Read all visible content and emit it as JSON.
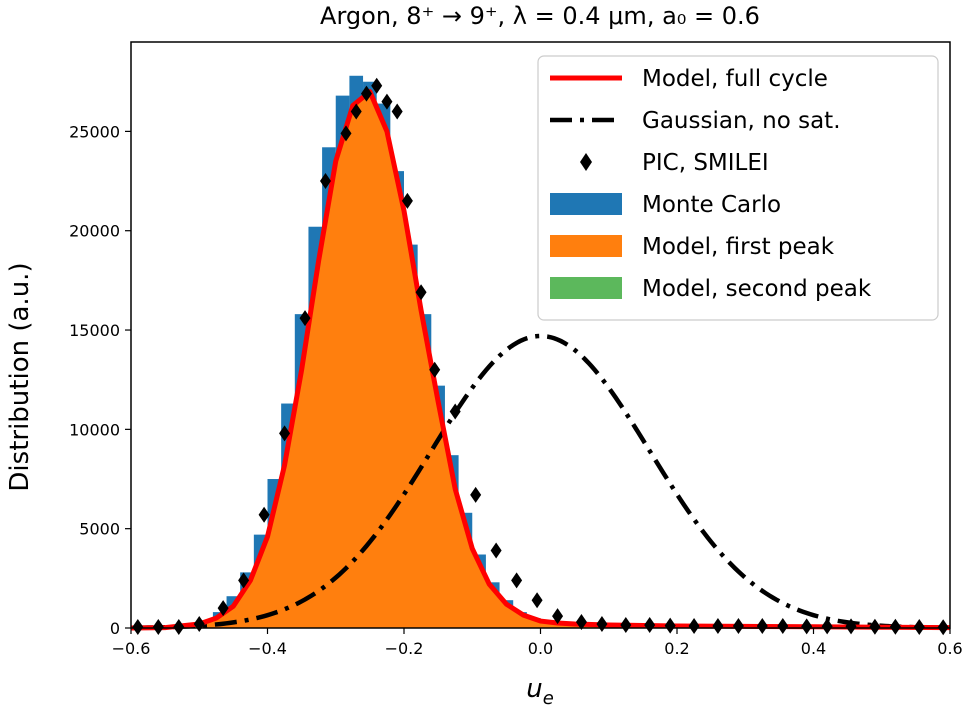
{
  "chart_data": {
    "type": "line",
    "title": "Argon, 8⁺ → 9⁺, λ = 0.4 μm, a₀ = 0.6",
    "xlabel": "u",
    "xlabel_sub": "e",
    "ylabel": "Distribution (a.u.)",
    "xlim": [
      -0.6,
      0.6
    ],
    "ylim": [
      0,
      29500
    ],
    "x_ticks": [
      -0.6,
      -0.4,
      -0.2,
      0.0,
      0.2,
      0.4,
      0.6
    ],
    "x_tick_labels": [
      "−0.6",
      "−0.4",
      "−0.2",
      "0.0",
      "0.2",
      "0.4",
      "0.6"
    ],
    "y_ticks": [
      0,
      5000,
      10000,
      15000,
      20000,
      25000
    ],
    "y_tick_labels": [
      "0",
      "5000",
      "10000",
      "15000",
      "20000",
      "25000"
    ],
    "grid": false,
    "legend_position": "top-right",
    "legend": [
      {
        "label": "Model, full cycle",
        "color": "#ff0000",
        "marker": "line"
      },
      {
        "label": "Gaussian, no sat.",
        "color": "#000000",
        "marker": "dashdot"
      },
      {
        "label": "PIC, SMILEI",
        "color": "#000000",
        "marker": "diamond"
      },
      {
        "label": "Monte Carlo",
        "color": "#1f77b4",
        "marker": "patch"
      },
      {
        "label": "Model, first peak",
        "color": "#ff7f0e",
        "marker": "patch"
      },
      {
        "label": "Model, second peak",
        "color": "#5cb85c",
        "marker": "patch"
      }
    ],
    "series": [
      {
        "name": "Model, full cycle",
        "color": "#ff0000",
        "x": [
          -0.6,
          -0.55,
          -0.5,
          -0.475,
          -0.45,
          -0.425,
          -0.4,
          -0.375,
          -0.35,
          -0.325,
          -0.3,
          -0.275,
          -0.25,
          -0.225,
          -0.2,
          -0.175,
          -0.15,
          -0.125,
          -0.1,
          -0.075,
          -0.05,
          -0.025,
          0.0,
          0.025,
          0.05,
          0.1,
          0.2,
          0.3,
          0.4,
          0.5,
          0.6
        ],
        "y": [
          0,
          20,
          200,
          500,
          1100,
          2400,
          4600,
          8200,
          13000,
          18500,
          23500,
          26300,
          27000,
          25000,
          21000,
          16000,
          11400,
          7000,
          4000,
          2200,
          1200,
          650,
          350,
          250,
          200,
          150,
          100,
          80,
          60,
          40,
          20
        ]
      },
      {
        "name": "Gaussian, no sat.",
        "color": "#000000",
        "gauss": {
          "amplitude": 14700,
          "mu": 0.0,
          "sigma": 0.16
        }
      },
      {
        "name": "PIC, SMILEI",
        "color": "#000000",
        "x": [
          -0.59,
          -0.56,
          -0.53,
          -0.5,
          -0.465,
          -0.435,
          -0.405,
          -0.375,
          -0.345,
          -0.315,
          -0.285,
          -0.27,
          -0.255,
          -0.24,
          -0.225,
          -0.21,
          -0.195,
          -0.175,
          -0.155,
          -0.125,
          -0.095,
          -0.065,
          -0.035,
          -0.005,
          0.025,
          0.06,
          0.09,
          0.125,
          0.16,
          0.19,
          0.225,
          0.26,
          0.29,
          0.325,
          0.355,
          0.39,
          0.42,
          0.455,
          0.49,
          0.52,
          0.555,
          0.59
        ],
        "y": [
          50,
          50,
          50,
          200,
          1000,
          2400,
          5700,
          9800,
          15600,
          22500,
          24900,
          26000,
          26900,
          27300,
          26500,
          26000,
          21500,
          16900,
          13000,
          10900,
          6700,
          3900,
          2400,
          1400,
          600,
          300,
          200,
          150,
          150,
          120,
          100,
          100,
          100,
          100,
          100,
          80,
          80,
          80,
          60,
          60,
          50,
          40
        ]
      },
      {
        "name": "Monte Carlo",
        "color": "#1f77b4",
        "bin_width": 0.02,
        "x": [
          -0.59,
          -0.57,
          -0.55,
          -0.53,
          -0.51,
          -0.49,
          -0.47,
          -0.45,
          -0.43,
          -0.41,
          -0.39,
          -0.37,
          -0.35,
          -0.33,
          -0.31,
          -0.29,
          -0.27,
          -0.25,
          -0.23,
          -0.21,
          -0.19,
          -0.17,
          -0.15,
          -0.13,
          -0.11,
          -0.09,
          -0.07,
          -0.05,
          -0.03,
          -0.01,
          0.01,
          0.03,
          0.05,
          0.07,
          0.09
        ],
        "y": [
          0,
          0,
          0,
          50,
          150,
          350,
          800,
          1600,
          2800,
          4700,
          7500,
          11300,
          15800,
          20200,
          24200,
          26800,
          27800,
          27500,
          26400,
          23000,
          19300,
          15800,
          12200,
          8700,
          5800,
          3700,
          2300,
          1400,
          800,
          500,
          300,
          200,
          100,
          50,
          20
        ]
      },
      {
        "name": "Model, first peak",
        "color": "#ff7f0e",
        "x": [
          -0.6,
          -0.55,
          -0.5,
          -0.475,
          -0.45,
          -0.425,
          -0.4,
          -0.375,
          -0.35,
          -0.325,
          -0.3,
          -0.275,
          -0.25,
          -0.225,
          -0.2,
          -0.175,
          -0.15,
          -0.125,
          -0.1,
          -0.075,
          -0.05,
          -0.025,
          0.0,
          0.025,
          0.05,
          0.1,
          0.2,
          0.3,
          0.4,
          0.5,
          0.6
        ],
        "y": [
          0,
          20,
          200,
          500,
          1100,
          2400,
          4600,
          8200,
          13000,
          18500,
          23500,
          26300,
          27000,
          25000,
          21000,
          16000,
          11400,
          7000,
          4000,
          2200,
          1200,
          650,
          350,
          250,
          200,
          150,
          100,
          80,
          60,
          40,
          20
        ]
      },
      {
        "name": "Model, second peak",
        "color": "#5cb85c",
        "x": [
          -0.6,
          0.6
        ],
        "y": [
          0,
          0
        ]
      }
    ]
  }
}
